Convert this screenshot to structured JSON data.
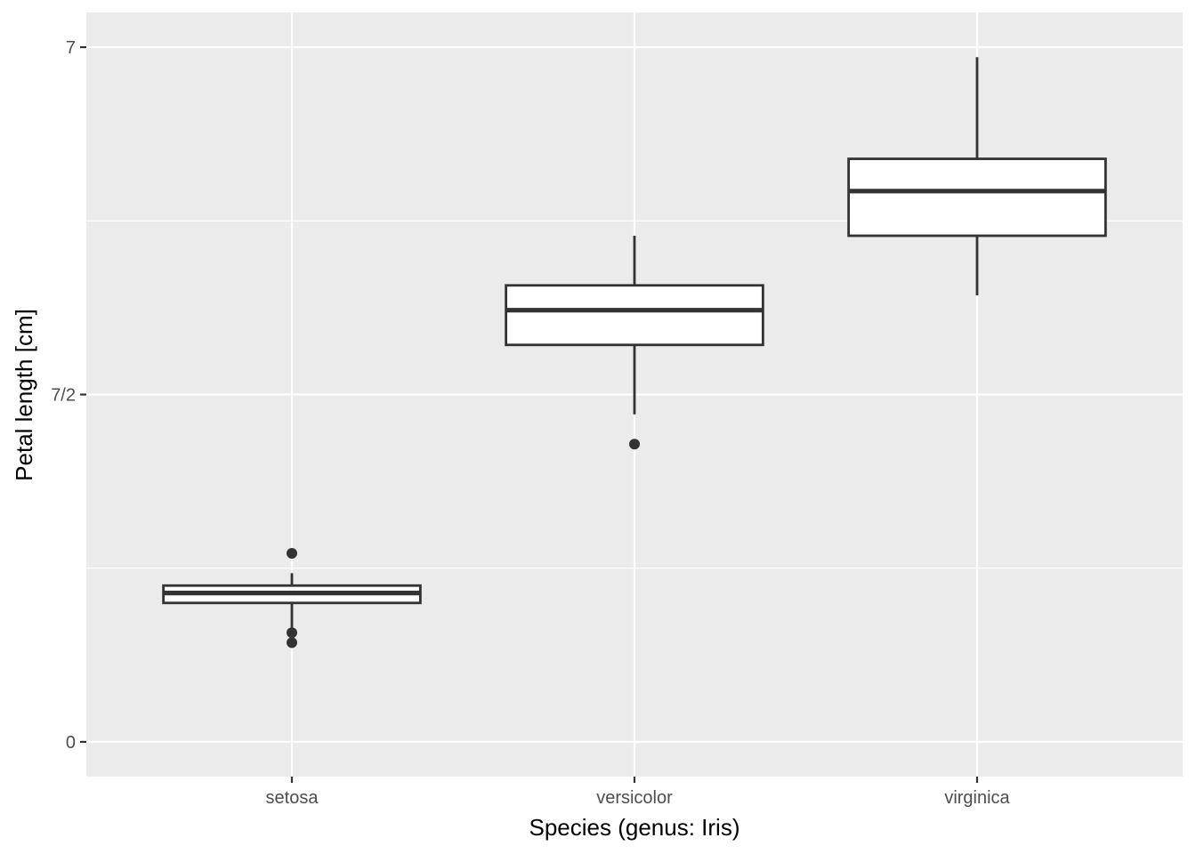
{
  "chart_data": {
    "type": "boxplot",
    "xlabel": "Species (genus: Iris)",
    "ylabel": "Petal length [cm]",
    "ylim": [
      -0.35,
      7.35
    ],
    "yticks": [
      {
        "value": 0,
        "label": "0"
      },
      {
        "value": 3.5,
        "label": "7/2"
      },
      {
        "value": 7,
        "label": "7"
      }
    ],
    "y_minor_ticks": [
      1.75,
      5.25
    ],
    "grid": true,
    "categories": [
      "setosa",
      "versicolor",
      "virginica"
    ],
    "boxes": [
      {
        "category": "setosa",
        "lower_whisker": 1.15,
        "q1": 1.4,
        "median": 1.5,
        "q3": 1.575,
        "upper_whisker": 1.7,
        "outliers": [
          1.9,
          1.1,
          1.0
        ]
      },
      {
        "category": "versicolor",
        "lower_whisker": 3.3,
        "q1": 4.0,
        "median": 4.35,
        "q3": 4.6,
        "upper_whisker": 5.1,
        "outliers": [
          3.0
        ]
      },
      {
        "category": "virginica",
        "lower_whisker": 4.5,
        "q1": 5.1,
        "median": 5.55,
        "q3": 5.875,
        "upper_whisker": 6.9,
        "outliers": []
      }
    ],
    "colors": {
      "panel_background": "#ebebeb",
      "grid_line": "#ffffff",
      "box_fill": "#ffffff",
      "box_stroke": "#333333",
      "outlier": "#333333"
    }
  }
}
